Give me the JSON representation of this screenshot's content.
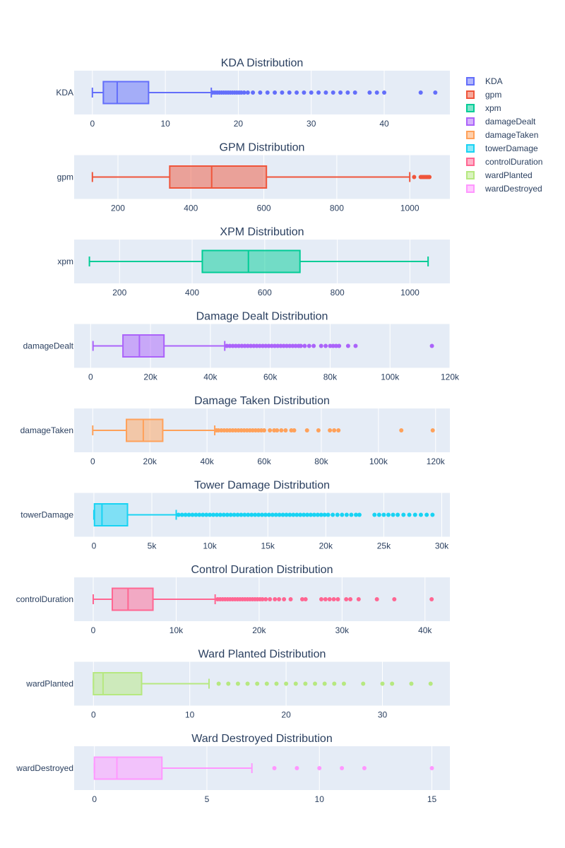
{
  "colors": {
    "plot_bg": "#e5ecf6",
    "grid": "#ffffff",
    "text": "#2a3f5f"
  },
  "legend": {
    "items": [
      {
        "label": "KDA",
        "color": "#636efa"
      },
      {
        "label": "gpm",
        "color": "#ef553b"
      },
      {
        "label": "xpm",
        "color": "#00cc96"
      },
      {
        "label": "damageDealt",
        "color": "#ab63fa"
      },
      {
        "label": "damageTaken",
        "color": "#ffa15a"
      },
      {
        "label": "towerDamage",
        "color": "#19d3f3"
      },
      {
        "label": "controlDuration",
        "color": "#ff6692"
      },
      {
        "label": "wardPlanted",
        "color": "#b6e880"
      },
      {
        "label": "wardDestroyed",
        "color": "#ff97ff"
      }
    ]
  },
  "chart_data": [
    {
      "type": "box",
      "title": "KDA Distribution",
      "category": "KDA",
      "color": "#636efa",
      "xlim": [
        -2.5,
        49
      ],
      "ticks": [
        0,
        10,
        20,
        30,
        40
      ],
      "tick_labels": [
        "0",
        "10",
        "20",
        "30",
        "40"
      ],
      "whisker_low": 0,
      "q1": 1.5,
      "median": 3.4,
      "q3": 7.7,
      "whisker_high": 16.3,
      "outliers": [
        16.5,
        16.8,
        17.1,
        17.4,
        17.7,
        18,
        18.3,
        18.6,
        18.9,
        19.2,
        19.5,
        19.8,
        20.1,
        20.4,
        20.8,
        21.3,
        22,
        23,
        24,
        25,
        26,
        27,
        28,
        29,
        30,
        31,
        32,
        33,
        34,
        35,
        36,
        38,
        39,
        40,
        45,
        47
      ]
    },
    {
      "type": "box",
      "title": "GPM Distribution",
      "category": "gpm",
      "color": "#ef553b",
      "xlim": [
        80,
        1110
      ],
      "ticks": [
        200,
        400,
        600,
        800,
        1000
      ],
      "tick_labels": [
        "200",
        "400",
        "600",
        "800",
        "1000"
      ],
      "whisker_low": 130,
      "q1": 342,
      "median": 457,
      "q3": 607,
      "whisker_high": 1000,
      "outliers": [
        1012,
        1030,
        1034,
        1038,
        1042,
        1046,
        1050,
        1054
      ]
    },
    {
      "type": "box",
      "title": "XPM Distribution",
      "category": "xpm",
      "color": "#00cc96",
      "xlim": [
        75,
        1110
      ],
      "ticks": [
        200,
        400,
        600,
        800,
        1000
      ],
      "tick_labels": [
        "200",
        "400",
        "600",
        "800",
        "1000"
      ],
      "whisker_low": 117,
      "q1": 428,
      "median": 555,
      "q3": 697,
      "whisker_high": 1050,
      "outliers": []
    },
    {
      "type": "box",
      "title": "Damage Dealt Distribution",
      "category": "damageDealt",
      "color": "#ab63fa",
      "xlim": [
        -5500,
        120000
      ],
      "ticks": [
        0,
        20000,
        40000,
        60000,
        80000,
        100000,
        120000
      ],
      "tick_labels": [
        "0",
        "20k",
        "40k",
        "60k",
        "80k",
        "100k",
        "120k"
      ],
      "whisker_low": 800,
      "q1": 10800,
      "median": 16300,
      "q3": 24500,
      "whisker_high": 44800,
      "outliers": [
        45500,
        46500,
        47500,
        48500,
        49500,
        50500,
        51500,
        52500,
        53500,
        54500,
        55500,
        56500,
        57500,
        58500,
        59500,
        60500,
        61500,
        62500,
        63500,
        64500,
        65500,
        66500,
        67500,
        68500,
        69500,
        70200,
        71500,
        73000,
        74500,
        77000,
        78500,
        80000,
        81000,
        82000,
        83000,
        86000,
        88500,
        114000
      ]
    },
    {
      "type": "box",
      "title": "Damage Taken Distribution",
      "category": "damageTaken",
      "color": "#ffa15a",
      "xlim": [
        -6500,
        125000
      ],
      "ticks": [
        0,
        20000,
        40000,
        60000,
        80000,
        100000,
        120000
      ],
      "tick_labels": [
        "0",
        "20k",
        "40k",
        "60k",
        "80k",
        "100k",
        "120k"
      ],
      "whisker_low": 0,
      "q1": 11800,
      "median": 17700,
      "q3": 24500,
      "whisker_high": 42700,
      "outliers": [
        43300,
        44000,
        45000,
        46000,
        47000,
        48000,
        49000,
        50000,
        51000,
        52000,
        53000,
        54000,
        55000,
        56000,
        57000,
        58000,
        59000,
        60000,
        62000,
        63500,
        64500,
        66000,
        67500,
        69500,
        70500,
        75000,
        79000,
        83000,
        84500,
        86000,
        108000,
        119000
      ]
    },
    {
      "type": "box",
      "title": "Tower Damage Distribution",
      "category": "towerDamage",
      "color": "#19d3f3",
      "xlim": [
        -1700,
        30700
      ],
      "ticks": [
        0,
        5000,
        10000,
        15000,
        20000,
        25000,
        30000
      ],
      "tick_labels": [
        "0",
        "5k",
        "10k",
        "15k",
        "20k",
        "25k",
        "30k"
      ],
      "whisker_low": 0,
      "q1": 50,
      "median": 700,
      "q3": 2900,
      "whisker_high": 7100,
      "outliers": [
        7300,
        7600,
        7900,
        8200,
        8500,
        8800,
        9100,
        9400,
        9700,
        10000,
        10300,
        10600,
        10900,
        11200,
        11500,
        11800,
        12100,
        12400,
        12700,
        13000,
        13300,
        13600,
        13900,
        14200,
        14500,
        14800,
        15100,
        15400,
        15700,
        16000,
        16300,
        16600,
        16900,
        17200,
        17500,
        17800,
        18100,
        18400,
        18700,
        19000,
        19300,
        19600,
        19900,
        20200,
        20600,
        21000,
        21400,
        21800,
        22200,
        22600,
        22900,
        24200,
        24600,
        25000,
        25400,
        25800,
        26200,
        26700,
        27200,
        27700,
        28200,
        28700,
        29200
      ]
    },
    {
      "type": "box",
      "title": "Control Duration Distribution",
      "category": "controlDuration",
      "color": "#ff6692",
      "xlim": [
        -2300,
        43000
      ],
      "ticks": [
        0,
        10000,
        20000,
        30000,
        40000
      ],
      "tick_labels": [
        "0",
        "10k",
        "20k",
        "30k",
        "40k"
      ],
      "whisker_low": 0,
      "q1": 2300,
      "median": 4200,
      "q3": 7200,
      "whisker_high": 14700,
      "outliers": [
        15000,
        15300,
        15600,
        15900,
        16200,
        16500,
        16800,
        17100,
        17400,
        17700,
        18000,
        18300,
        18600,
        18900,
        19200,
        19500,
        19800,
        20100,
        20400,
        20800,
        21300,
        21900,
        22400,
        23000,
        23800,
        25200,
        25600,
        27500,
        28000,
        28500,
        29000,
        29500,
        30500,
        31000,
        32000,
        34200,
        36300,
        40800
      ]
    },
    {
      "type": "box",
      "title": "Ward Planted Distribution",
      "category": "wardPlanted",
      "color": "#b6e880",
      "xlim": [
        -2,
        37
      ],
      "ticks": [
        0,
        10,
        20,
        30
      ],
      "tick_labels": [
        "0",
        "10",
        "20",
        "30"
      ],
      "whisker_low": 0,
      "q1": 0,
      "median": 1,
      "q3": 5,
      "whisker_high": 12,
      "outliers": [
        13,
        14,
        15,
        16,
        17,
        18,
        19,
        20,
        21,
        22,
        23,
        24,
        25,
        26,
        28,
        30,
        31,
        33,
        35
      ]
    },
    {
      "type": "box",
      "title": "Ward Destroyed Distribution",
      "category": "wardDestroyed",
      "color": "#ff97ff",
      "xlim": [
        -0.9,
        15.8
      ],
      "ticks": [
        0,
        5,
        10,
        15
      ],
      "tick_labels": [
        "0",
        "5",
        "10",
        "15"
      ],
      "whisker_low": 0,
      "q1": 0,
      "median": 1,
      "q3": 3,
      "whisker_high": 7,
      "outliers": [
        8,
        9,
        10,
        11,
        12,
        15
      ]
    }
  ]
}
